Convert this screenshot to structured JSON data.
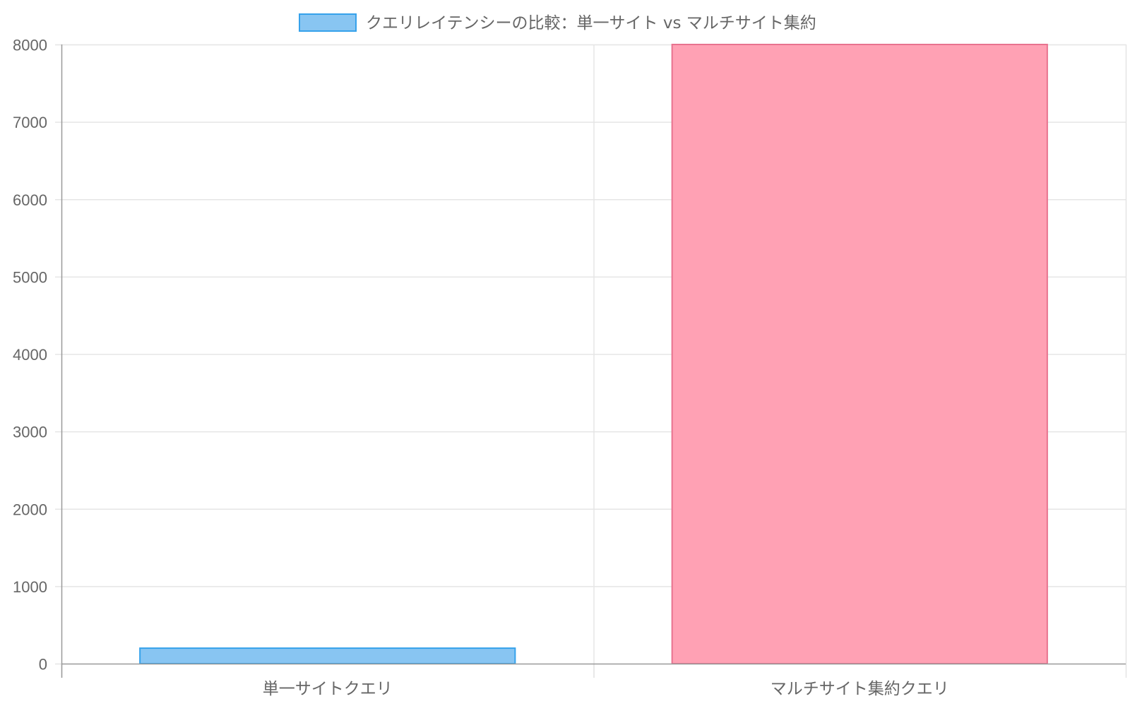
{
  "chart_data": {
    "type": "bar",
    "categories": [
      "単一サイトクエリ",
      "マルチサイト集約クエリ"
    ],
    "series": [
      {
        "name": "クエリレイテンシーの比較：単一サイト vs マルチサイト集約",
        "values": [
          200,
          8000
        ]
      }
    ],
    "ylim": [
      0,
      8000
    ],
    "yticks": [
      0,
      1000,
      2000,
      3000,
      4000,
      5000,
      6000,
      7000,
      8000
    ],
    "grid": true,
    "legend_position": "top-center",
    "bar_colors": [
      {
        "fill": "#88c5f2",
        "stroke": "#36a2eb"
      },
      {
        "fill": "#ffa1b4",
        "stroke": "#e8738f"
      }
    ],
    "legend_color": {
      "fill": "#88c5f2",
      "stroke": "#36a2eb"
    },
    "gridline_color": "#e5e5e5",
    "axis_color": "#999999",
    "text_color": "#666666"
  }
}
